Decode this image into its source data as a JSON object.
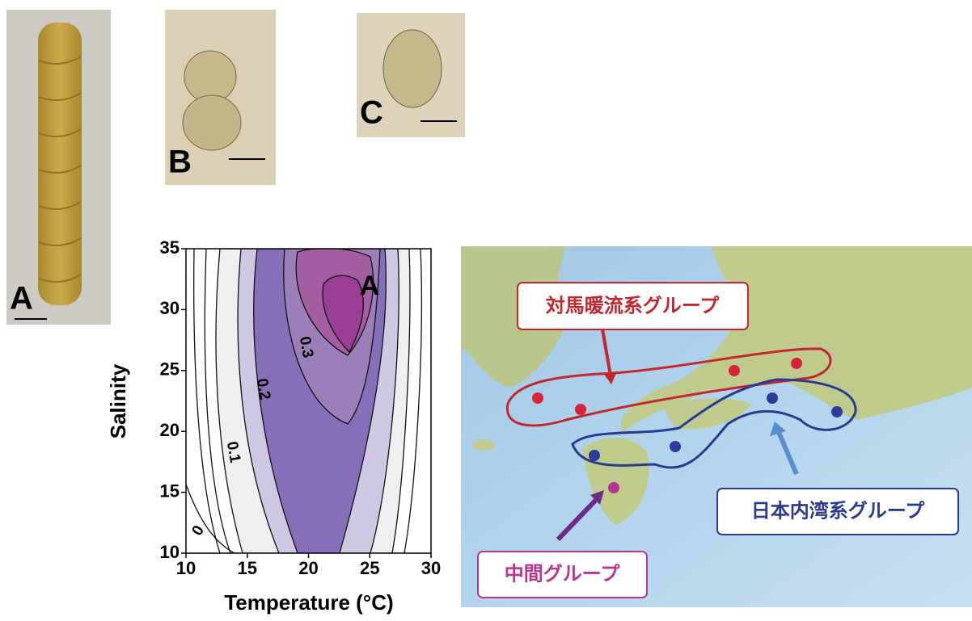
{
  "panel_labels": [
    "A",
    "B",
    "C"
  ],
  "chart_data": {
    "type": "contour",
    "annotation": "A",
    "x_label": "Temperature (°C)",
    "y_label": "Salinity",
    "xlim": [
      10,
      30
    ],
    "xticks": [
      10,
      15,
      20,
      25,
      30
    ],
    "ylim": [
      10,
      35
    ],
    "yticks": [
      10,
      15,
      20,
      25,
      30,
      35
    ],
    "levels": [
      0,
      0.1,
      0.2,
      0.3
    ]
  },
  "map": {
    "groups": [
      "対馬暖流系グループ",
      "日本内湾系グループ",
      "中間グループ"
    ]
  }
}
